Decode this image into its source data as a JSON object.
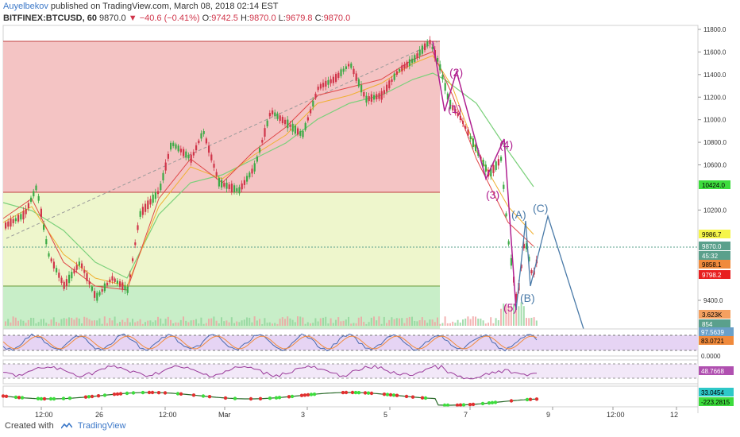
{
  "header": {
    "author": "Auyelbekov",
    "published_text": " published on TradingView.com, March 08, 2018 02:14 EST"
  },
  "symbol_bar": {
    "symbol": "BITFINEX:BTCUSD, 60",
    "last": "9870.0",
    "change": "−40.6 (−0.41%)",
    "open": "9742.5",
    "high": "9870.0",
    "low": "9679.8",
    "close": "9870.0",
    "open_label": "O:",
    "high_label": "H:",
    "low_label": "L:",
    "close_label": "C:"
  },
  "price_axis": {
    "ticks": [
      "11800.0",
      "11600.0",
      "11400.0",
      "11200.0",
      "11000.0",
      "10800.0",
      "10600.0",
      "10200.0",
      "9400.0"
    ],
    "ticks_values": [
      11800,
      11600,
      11400,
      11200,
      11000,
      10800,
      10600,
      10200,
      9400
    ],
    "badges": [
      {
        "text": "10424.0",
        "bg": "#3ddc3d",
        "fg": "#000000"
      },
      {
        "text": "9986.7",
        "bg": "#f5f54a",
        "fg": "#000000"
      },
      {
        "text": "9870.0",
        "bg": "#5aa08c",
        "fg": "#ffffff"
      },
      {
        "text": "45:32",
        "bg": "#5aa08c",
        "fg": "#ffffff"
      },
      {
        "text": "9858.1",
        "bg": "#f08a3c",
        "fg": "#000000"
      },
      {
        "text": "9798.2",
        "bg": "#e82020",
        "fg": "#ffffff"
      },
      {
        "text": "3.623K",
        "bg": "#f4a060",
        "fg": "#000000"
      },
      {
        "text": "854",
        "bg": "#5aa08c",
        "fg": "#ffffff"
      }
    ]
  },
  "stoch_panel": {
    "badges": [
      {
        "text": "97.5639",
        "bg": "#6aa0c8",
        "fg": "#ffffff"
      },
      {
        "text": "83.0721",
        "bg": "#f08a3c",
        "fg": "#000000"
      }
    ],
    "tick": "0.0000"
  },
  "rsi_panel": {
    "badges": [
      {
        "text": "48.7668",
        "bg": "#b050b0",
        "fg": "#ffffff"
      }
    ]
  },
  "macd_panel": {
    "badges": [
      {
        "text": "33.0454",
        "bg": "#2ec8c8",
        "fg": "#000000"
      },
      {
        "text": "-223.2815",
        "bg": "#3ddc3d",
        "fg": "#000000"
      }
    ]
  },
  "time_axis": {
    "labels": [
      "12:00",
      "26",
      "12:00",
      "Mar",
      "3",
      "5",
      "7",
      "9",
      "12:00",
      "12"
    ]
  },
  "wave_labels": {
    "impulse": [
      "(1)",
      "(2)",
      "(3)",
      "(4)",
      "(5)"
    ],
    "corrective": [
      "(A)",
      "(B)",
      "(C)"
    ]
  },
  "colors": {
    "zone_red": "#f4c4c4",
    "zone_yellow": "#eef6cc",
    "zone_green": "#c8eec8",
    "candle_up": "#3caa46",
    "candle_down": "#d0354a",
    "wave_purple": "#b02090",
    "wave_blue": "#4a7aa8"
  },
  "footer": {
    "created_with": "Created with",
    "brand": "TradingView"
  }
}
